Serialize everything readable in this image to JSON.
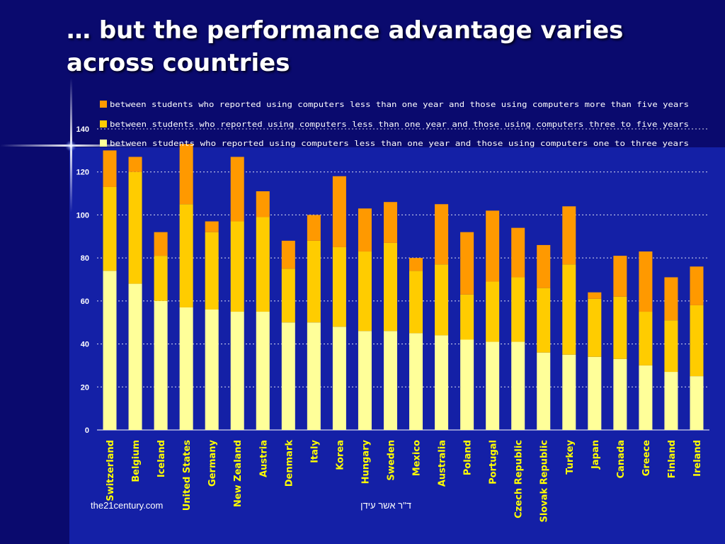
{
  "slide": {
    "title_line1": "… but the performance advantage varies",
    "title_line2": "across countries",
    "footer_left": "the21century.com",
    "footer_center": "ד\"ר אשר עידן"
  },
  "colors": {
    "background": "#0a0a6e",
    "panel": "#1420a6",
    "series_one_to_three": "#ffff99",
    "series_three_to_five": "#ffcc00",
    "series_more_than_five": "#ff9900",
    "text": "#ffffff"
  },
  "chart_data": {
    "type": "bar",
    "stacked": true,
    "categories": [
      "Switzerland",
      "Belgium",
      "Iceland",
      "United States",
      "Germany",
      "New Zealand",
      "Austria",
      "Denmark",
      "Italy",
      "Korea",
      "Hungary",
      "Sweden",
      "Mexico",
      "Australia",
      "Poland",
      "Portugal",
      "Czech Republic",
      "Slovak Republic",
      "Turkey",
      "Japan",
      "Canada",
      "Greece",
      "Finland",
      "Ireland"
    ],
    "series": [
      {
        "name": "between students who reported using computers less than one year and those using computers one to three years",
        "color": "#ffff99",
        "values": [
          74,
          68,
          60,
          57,
          56,
          55,
          55,
          50,
          50,
          48,
          46,
          46,
          45,
          44,
          42,
          41,
          41,
          36,
          35,
          34,
          33,
          30,
          27,
          25
        ]
      },
      {
        "name": "between students who reported using computers less than one year and those using computers three to five years",
        "color": "#ffcc00",
        "values": [
          39,
          52,
          21,
          48,
          36,
          42,
          44,
          25,
          38,
          37,
          37,
          41,
          29,
          33,
          21,
          28,
          30,
          30,
          42,
          27,
          29,
          25,
          24,
          33
        ]
      },
      {
        "name": "between students who reported using computers less than one year and those using computers more than five years",
        "color": "#ff9900",
        "values": [
          17,
          7,
          11,
          28,
          5,
          30,
          12,
          13,
          12,
          33,
          20,
          19,
          6,
          28,
          29,
          33,
          23,
          20,
          27,
          3,
          19,
          28,
          20,
          18
        ]
      }
    ],
    "legend_order": [
      2,
      1,
      0
    ],
    "legend_position": "top",
    "ylim": [
      0,
      140
    ],
    "yticks": [
      0,
      20,
      40,
      60,
      80,
      100,
      120,
      140
    ],
    "grid": true,
    "xlabel": "",
    "ylabel": ""
  }
}
